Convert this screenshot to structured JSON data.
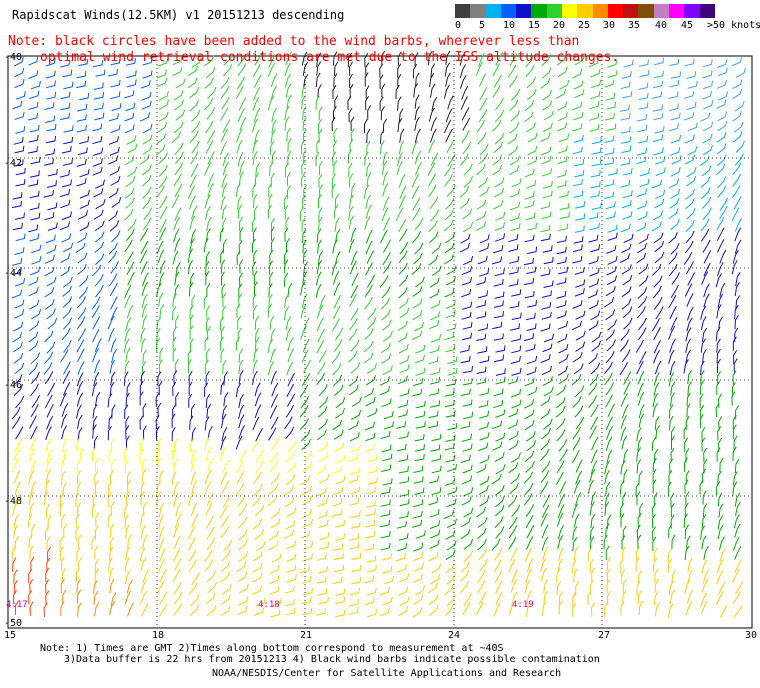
{
  "title": "Rapidscat Winds(12.5KM) v1 20151213 descending",
  "note_line1": "Note: black circles have been added to the wind barbs, wherever less than",
  "note_line2": "optimal wind retrieval conditions are met due to the ISS altitude changes.",
  "legend": {
    "labels": [
      "0",
      "5",
      "10",
      "15",
      "20",
      "25",
      "30",
      "35",
      "40",
      "45",
      ">50 knots"
    ],
    "colors": [
      "#404040",
      "#808080",
      "#00b0f0",
      "#0060ff",
      "#1010c8",
      "#00aa00",
      "#30d030",
      "#ffff00",
      "#ffcc00",
      "#ff8c00",
      "#ff0000",
      "#c01010",
      "#805000",
      "#c080c0",
      "#ff00ff",
      "#8000ff",
      "#400080"
    ]
  },
  "axes": {
    "y_labels": [
      "-40",
      "-42",
      "-44",
      "-46",
      "-48",
      "-50"
    ],
    "x_labels": [
      "15",
      "18",
      "21",
      "24",
      "27",
      "30"
    ]
  },
  "times": [
    "4:17",
    "4:18",
    "4:19"
  ],
  "footer": {
    "line1": "Note: 1) Times are GMT 2)Times along bottom correspond to measurement at ~40S",
    "line2": "3)Data buffer is 22 hrs from 20151213 4) Black wind barbs indicate possible contamination",
    "line3": "NOAA/NESDIS/Center for Satellite Applications and Research"
  }
}
